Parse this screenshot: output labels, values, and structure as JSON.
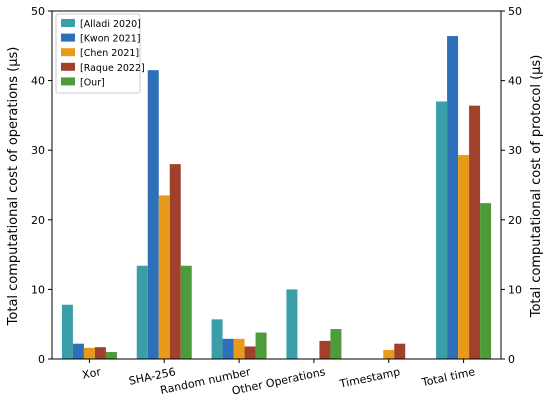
{
  "chart_data": {
    "type": "bar",
    "title": "",
    "xlabel": "",
    "ylabel_left": "Total computational cost of operations (μs)",
    "ylabel_right": "Total computational cost of protocol (μs)",
    "ylim": [
      0,
      50
    ],
    "yticks": [
      0,
      10,
      20,
      30,
      40,
      50
    ],
    "grid": false,
    "legend_position": "top-left",
    "categories": [
      "Xor",
      "SHA-256",
      "Random number",
      "Other Operations",
      "Timestamp",
      "Total time"
    ],
    "series": [
      {
        "name": "[Alladi 2020]",
        "color": "#3a9fa8",
        "values": [
          7.8,
          13.4,
          5.7,
          10.0,
          0,
          37.0
        ]
      },
      {
        "name": "[Kwon 2021]",
        "color": "#2e6fba",
        "values": [
          2.2,
          41.5,
          2.9,
          0,
          0,
          46.4
        ]
      },
      {
        "name": "[Chen 2021]",
        "color": "#e89a1d",
        "values": [
          1.6,
          23.5,
          2.9,
          0,
          1.3,
          29.3
        ]
      },
      {
        "name": "[Raque 2022]",
        "color": "#a0412b",
        "values": [
          1.7,
          28.0,
          1.8,
          2.6,
          2.2,
          36.4
        ]
      },
      {
        "name": "[Our]",
        "color": "#4f9a3a",
        "values": [
          1.0,
          13.4,
          3.8,
          4.3,
          0,
          22.4
        ]
      }
    ]
  }
}
